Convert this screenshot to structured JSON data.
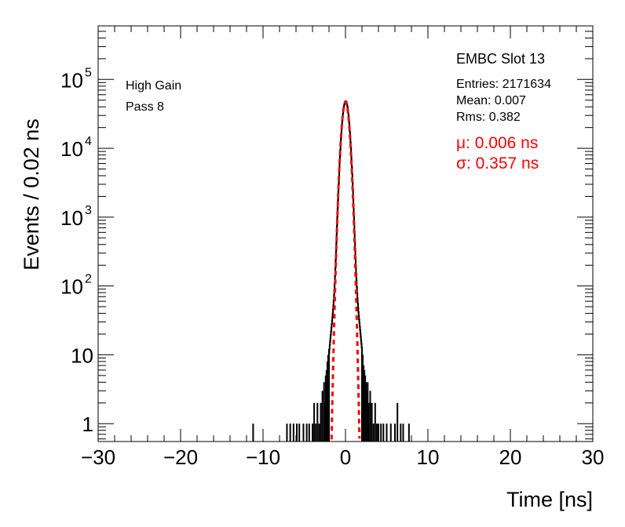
{
  "chart_data": {
    "type": "histogram",
    "title": "",
    "xlabel": "Time [ns]",
    "ylabel": "Events / 0.02 ns",
    "xlim": [
      -30,
      30
    ],
    "ylim": [
      0.55,
      600000
    ],
    "ylog": true,
    "grid": false,
    "x_ticks": [
      -30,
      -20,
      -10,
      0,
      10,
      20,
      30
    ],
    "x_tick_labels": [
      "−30",
      "−20",
      "−10",
      "0",
      "10",
      "20",
      "30"
    ],
    "y_ticks": [
      1,
      10,
      100,
      1000,
      10000,
      100000
    ],
    "y_tick_labels": [
      {
        "base": "1",
        "exp": ""
      },
      {
        "base": "10",
        "exp": ""
      },
      {
        "base": "10",
        "exp": "2"
      },
      {
        "base": "10",
        "exp": "3"
      },
      {
        "base": "10",
        "exp": "4"
      },
      {
        "base": "10",
        "exp": "5"
      }
    ],
    "histogram": {
      "name": "EMBC Slot 13",
      "color": "#000000",
      "core": {
        "mean": 0.007,
        "sigma": 0.357,
        "amplitude": 48000
      },
      "tail": {
        "sigma": 0.8,
        "amplitude": 250
      },
      "scatter_bins": [
        [
          -11.2,
          1
        ],
        [
          -7.1,
          1
        ],
        [
          -6.7,
          1
        ],
        [
          -6.3,
          1
        ],
        [
          -5.9,
          1
        ],
        [
          -5.6,
          1
        ],
        [
          -5.1,
          1
        ],
        [
          -4.7,
          1
        ],
        [
          -4.4,
          1
        ],
        [
          -4.0,
          1
        ],
        [
          -3.8,
          2
        ],
        [
          -3.6,
          1
        ],
        [
          -3.4,
          2
        ],
        [
          -3.2,
          1
        ],
        [
          -3.0,
          2
        ],
        [
          -2.8,
          3
        ],
        [
          -2.6,
          4
        ],
        [
          -2.5,
          2
        ],
        [
          -2.4,
          5
        ],
        [
          -2.3,
          6
        ],
        [
          -2.2,
          8
        ],
        [
          -2.1,
          10
        ],
        [
          -2.05,
          9
        ],
        [
          -2.0,
          12
        ],
        [
          2.0,
          12
        ],
        [
          2.1,
          10
        ],
        [
          2.2,
          7
        ],
        [
          2.3,
          6
        ],
        [
          2.4,
          5
        ],
        [
          2.5,
          4
        ],
        [
          2.6,
          3
        ],
        [
          2.7,
          4
        ],
        [
          2.8,
          2
        ],
        [
          3.0,
          3
        ],
        [
          3.2,
          2
        ],
        [
          3.4,
          1
        ],
        [
          3.6,
          2
        ],
        [
          3.8,
          1
        ],
        [
          4.0,
          1
        ],
        [
          4.3,
          1
        ],
        [
          4.6,
          1
        ],
        [
          5.0,
          1
        ],
        [
          5.5,
          1
        ],
        [
          6.0,
          1
        ],
        [
          6.3,
          2
        ],
        [
          6.7,
          1
        ],
        [
          7.0,
          1
        ],
        [
          7.7,
          1
        ]
      ]
    },
    "fit": {
      "type": "gaussian",
      "mean": 0.006,
      "sigma": 0.357,
      "amplitude": 47000,
      "color": "#ff0000"
    }
  },
  "stats": {
    "name": "EMBC Slot 13",
    "entries": "Entries: 2171634",
    "mean": "Mean: 0.007",
    "rms": "Rms: 0.382"
  },
  "fit_labels": {
    "mu": "μ: 0.006 ns",
    "sigma": "σ: 0.357 ns"
  },
  "labels": {
    "gain": "High Gain",
    "pass": "Pass 8"
  }
}
